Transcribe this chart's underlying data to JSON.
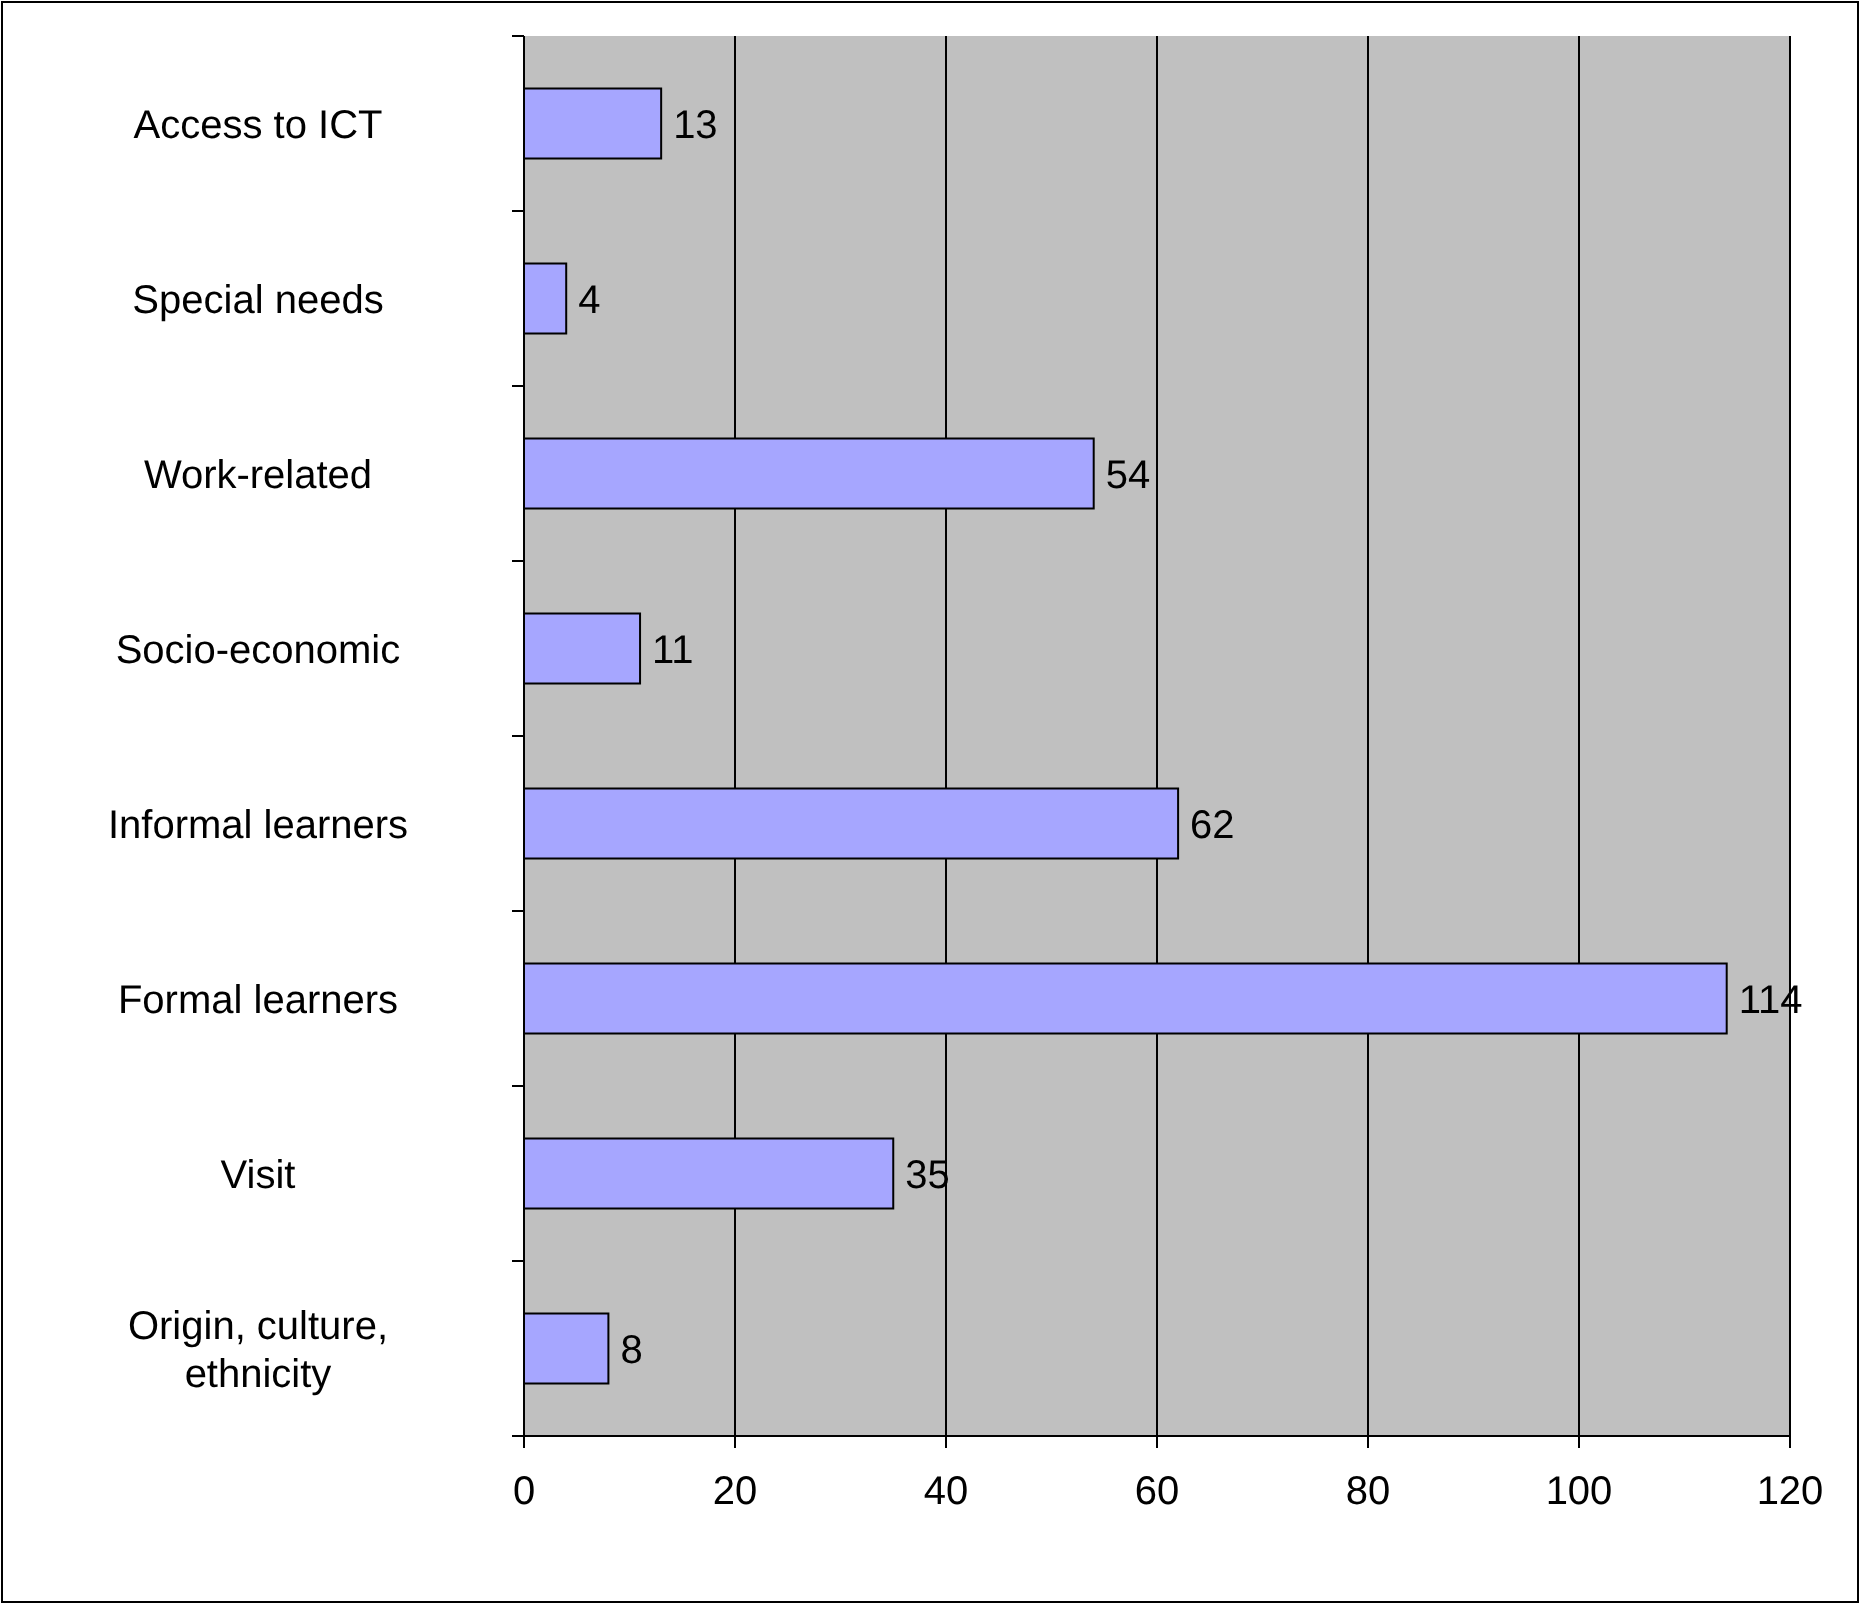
{
  "chart_data": {
    "type": "bar",
    "orientation": "horizontal",
    "categories": [
      "Access to ICT",
      "Special needs",
      "Work-related",
      "Socio-economic",
      "Informal learners",
      "Formal learners",
      "Visit",
      "Origin, culture, ethnicity"
    ],
    "values": [
      13,
      4,
      54,
      11,
      62,
      114,
      35,
      8
    ],
    "color": "#a6a6ff",
    "xlim": [
      0,
      120
    ],
    "xticks": [
      0,
      20,
      40,
      60,
      80,
      100,
      120
    ],
    "grid": "x",
    "data_labels": true
  }
}
